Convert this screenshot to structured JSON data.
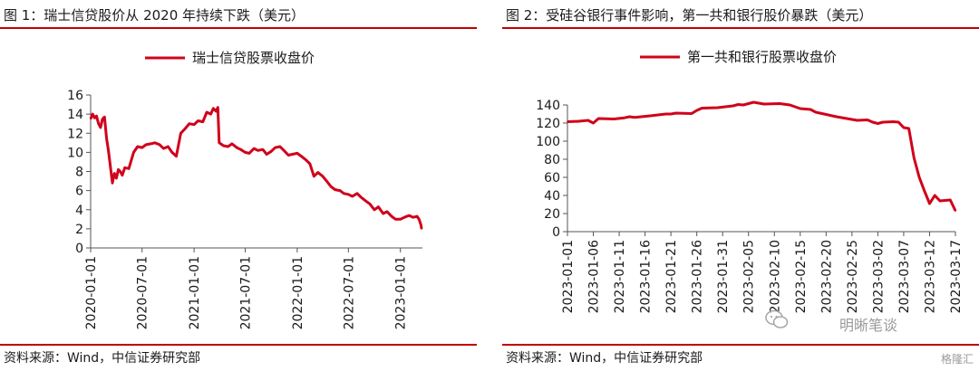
{
  "left_panel": {
    "title": "图 1：瑞士信贷股价从 2020 年持续下跌（美元）",
    "source": "资料来源：Wind，中信证券研究部"
  },
  "right_panel": {
    "title": "图 2：受硅谷银行事件影响，第一共和银行股价暴跌（美元）",
    "source": "资料来源：Wind，中信证券研究部"
  },
  "watermark": {
    "text": "明晰笔谈",
    "badge": "格隆汇"
  },
  "chart_data": [
    {
      "type": "line",
      "title": "图 1：瑞士信贷股价从 2020 年持续下跌（美元）",
      "xlabel": "",
      "ylabel": "",
      "color": "#d0021b",
      "legend_position": "top-center",
      "grid": false,
      "ylim": [
        0,
        16
      ],
      "yticks": [
        0,
        2,
        4,
        6,
        8,
        10,
        12,
        14,
        16
      ],
      "xlim": [
        "2020-01-01",
        "2023-03-20"
      ],
      "xticks": [
        "2020-01-01",
        "2020-07-01",
        "2021-01-01",
        "2021-07-01",
        "2022-01-01",
        "2022-07-01",
        "2023-01-01"
      ],
      "series": [
        {
          "name": "瑞士信贷股票收盘价",
          "points": [
            [
              "2020-01-01",
              13.5
            ],
            [
              "2020-01-08",
              14.0
            ],
            [
              "2020-01-15",
              13.6
            ],
            [
              "2020-01-22",
              13.8
            ],
            [
              "2020-01-29",
              13.0
            ],
            [
              "2020-02-05",
              12.6
            ],
            [
              "2020-02-12",
              13.5
            ],
            [
              "2020-02-19",
              13.7
            ],
            [
              "2020-02-26",
              11.5
            ],
            [
              "2020-03-04",
              10.2
            ],
            [
              "2020-03-11",
              8.5
            ],
            [
              "2020-03-18",
              6.8
            ],
            [
              "2020-03-25",
              7.8
            ],
            [
              "2020-04-01",
              7.3
            ],
            [
              "2020-04-08",
              8.2
            ],
            [
              "2020-04-15",
              8.0
            ],
            [
              "2020-04-22",
              7.6
            ],
            [
              "2020-05-01",
              8.4
            ],
            [
              "2020-05-15",
              8.3
            ],
            [
              "2020-06-01",
              10.0
            ],
            [
              "2020-06-15",
              10.6
            ],
            [
              "2020-07-01",
              10.5
            ],
            [
              "2020-07-15",
              10.8
            ],
            [
              "2020-08-01",
              10.9
            ],
            [
              "2020-08-15",
              11.0
            ],
            [
              "2020-09-01",
              10.8
            ],
            [
              "2020-09-15",
              10.4
            ],
            [
              "2020-10-01",
              10.6
            ],
            [
              "2020-10-15",
              10.0
            ],
            [
              "2020-10-30",
              9.6
            ],
            [
              "2020-11-15",
              12.0
            ],
            [
              "2020-12-01",
              12.5
            ],
            [
              "2020-12-15",
              13.0
            ],
            [
              "2021-01-01",
              12.9
            ],
            [
              "2021-01-15",
              13.3
            ],
            [
              "2021-02-01",
              13.2
            ],
            [
              "2021-02-15",
              14.2
            ],
            [
              "2021-03-01",
              14.0
            ],
            [
              "2021-03-10",
              14.6
            ],
            [
              "2021-03-20",
              14.3
            ],
            [
              "2021-03-26",
              14.7
            ],
            [
              "2021-03-31",
              11.0
            ],
            [
              "2021-04-15",
              10.7
            ],
            [
              "2021-05-01",
              10.6
            ],
            [
              "2021-05-15",
              10.9
            ],
            [
              "2021-06-01",
              10.5
            ],
            [
              "2021-06-15",
              10.3
            ],
            [
              "2021-07-01",
              10.0
            ],
            [
              "2021-07-15",
              9.9
            ],
            [
              "2021-08-01",
              10.4
            ],
            [
              "2021-08-15",
              10.2
            ],
            [
              "2021-09-01",
              10.3
            ],
            [
              "2021-09-15",
              9.8
            ],
            [
              "2021-10-01",
              10.1
            ],
            [
              "2021-10-15",
              10.5
            ],
            [
              "2021-11-01",
              10.6
            ],
            [
              "2021-11-15",
              10.2
            ],
            [
              "2021-12-01",
              9.7
            ],
            [
              "2021-12-15",
              9.8
            ],
            [
              "2022-01-01",
              9.9
            ],
            [
              "2022-01-15",
              9.6
            ],
            [
              "2022-02-01",
              9.2
            ],
            [
              "2022-02-15",
              8.8
            ],
            [
              "2022-03-01",
              7.5
            ],
            [
              "2022-03-15",
              7.9
            ],
            [
              "2022-04-01",
              7.5
            ],
            [
              "2022-04-15",
              7.0
            ],
            [
              "2022-05-01",
              6.4
            ],
            [
              "2022-05-15",
              6.1
            ],
            [
              "2022-06-01",
              6.0
            ],
            [
              "2022-06-15",
              5.7
            ],
            [
              "2022-07-01",
              5.6
            ],
            [
              "2022-07-15",
              5.4
            ],
            [
              "2022-08-01",
              5.7
            ],
            [
              "2022-08-15",
              5.3
            ],
            [
              "2022-09-01",
              4.9
            ],
            [
              "2022-09-15",
              4.6
            ],
            [
              "2022-10-01",
              4.0
            ],
            [
              "2022-10-15",
              4.3
            ],
            [
              "2022-11-01",
              3.6
            ],
            [
              "2022-11-15",
              3.8
            ],
            [
              "2022-12-01",
              3.3
            ],
            [
              "2022-12-15",
              3.0
            ],
            [
              "2023-01-01",
              3.0
            ],
            [
              "2023-01-15",
              3.2
            ],
            [
              "2023-02-01",
              3.4
            ],
            [
              "2023-02-15",
              3.2
            ],
            [
              "2023-03-01",
              3.3
            ],
            [
              "2023-03-08",
              3.0
            ],
            [
              "2023-03-15",
              2.4
            ],
            [
              "2023-03-17",
              2.0
            ]
          ]
        }
      ]
    },
    {
      "type": "line",
      "title": "图 2：受硅谷银行事件影响，第一共和银行股价暴跌（美元）",
      "xlabel": "",
      "ylabel": "",
      "color": "#d0021b",
      "legend_position": "top-center",
      "grid": false,
      "ylim": [
        0,
        140
      ],
      "yticks": [
        0,
        20,
        40,
        60,
        80,
        100,
        120,
        140
      ],
      "xticks": [
        "2023-01-01",
        "2023-01-06",
        "2023-01-11",
        "2023-01-16",
        "2023-01-21",
        "2023-01-26",
        "2023-01-31",
        "2023-02-05",
        "2023-02-10",
        "2023-02-15",
        "2023-02-20",
        "2023-02-25",
        "2023-03-02",
        "2023-03-07",
        "2023-03-12",
        "2023-03-17"
      ],
      "series": [
        {
          "name": "第一共和银行股票收盘价",
          "points": [
            [
              "2023-01-01",
              121.5
            ],
            [
              "2023-01-03",
              121.9
            ],
            [
              "2023-01-05",
              123.0
            ],
            [
              "2023-01-06",
              120.0
            ],
            [
              "2023-01-07",
              125.0
            ],
            [
              "2023-01-10",
              124.5
            ],
            [
              "2023-01-12",
              125.8
            ],
            [
              "2023-01-13",
              127.0
            ],
            [
              "2023-01-14",
              126.3
            ],
            [
              "2023-01-17",
              128.0
            ],
            [
              "2023-01-20",
              130.0
            ],
            [
              "2023-01-21",
              130.0
            ],
            [
              "2023-01-22",
              131.0
            ],
            [
              "2023-01-25",
              130.5
            ],
            [
              "2023-01-26",
              134.0
            ],
            [
              "2023-01-27",
              136.5
            ],
            [
              "2023-01-30",
              137.0
            ],
            [
              "2023-02-02",
              139.0
            ],
            [
              "2023-02-03",
              140.5
            ],
            [
              "2023-02-04",
              140.0
            ],
            [
              "2023-02-06",
              143.0
            ],
            [
              "2023-02-07",
              142.0
            ],
            [
              "2023-02-08",
              141.0
            ],
            [
              "2023-02-11",
              141.5
            ],
            [
              "2023-02-13",
              140.0
            ],
            [
              "2023-02-15",
              136.0
            ],
            [
              "2023-02-16",
              135.5
            ],
            [
              "2023-02-17",
              135.0
            ],
            [
              "2023-02-18",
              132.0
            ],
            [
              "2023-02-22",
              127.0
            ],
            [
              "2023-02-25",
              124.0
            ],
            [
              "2023-02-26",
              123.0
            ],
            [
              "2023-02-28",
              123.5
            ],
            [
              "2023-03-01",
              121.0
            ],
            [
              "2023-03-02",
              119.5
            ],
            [
              "2023-03-03",
              121.0
            ],
            [
              "2023-03-05",
              121.5
            ],
            [
              "2023-03-06",
              121.0
            ],
            [
              "2023-03-07",
              115.0
            ],
            [
              "2023-03-08",
              114.0
            ],
            [
              "2023-03-09",
              81.5
            ],
            [
              "2023-03-10",
              60.0
            ],
            [
              "2023-03-11",
              45.0
            ],
            [
              "2023-03-12",
              31.0
            ],
            [
              "2023-03-13",
              40.0
            ],
            [
              "2023-03-14",
              34.0
            ],
            [
              "2023-03-15",
              34.5
            ],
            [
              "2023-03-16",
              35.0
            ],
            [
              "2023-03-17",
              23.0
            ]
          ]
        }
      ]
    }
  ]
}
